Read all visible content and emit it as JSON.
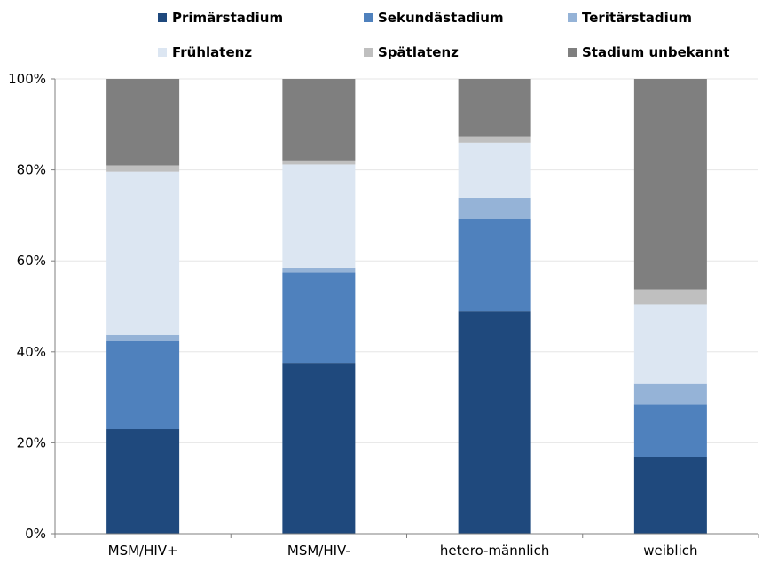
{
  "chart_data": {
    "type": "bar",
    "stacked": true,
    "normalized": true,
    "categories": [
      "MSM/HIV+",
      "MSM/HIV-",
      "hetero-männlich",
      "weiblich"
    ],
    "series": [
      {
        "name": "Primärstadium",
        "color": "#1f497d",
        "values": [
          23.0,
          37.6,
          48.9,
          16.8
        ]
      },
      {
        "name": "Sekundästadium",
        "color": "#4f81bd",
        "values": [
          19.3,
          19.8,
          20.3,
          11.6
        ]
      },
      {
        "name": "Teritärstadium",
        "color": "#95b3d7",
        "values": [
          1.4,
          1.1,
          4.7,
          4.6
        ]
      },
      {
        "name": "Frühlatenz",
        "color": "#dce6f2",
        "values": [
          35.9,
          22.7,
          12.1,
          17.4
        ]
      },
      {
        "name": "Spätlatenz",
        "color": "#bfbfbf",
        "values": [
          1.4,
          0.7,
          1.4,
          3.3
        ]
      },
      {
        "name": "Stadium unbekannt",
        "color": "#7f7f7f",
        "values": [
          19.0,
          18.1,
          12.6,
          46.3
        ]
      }
    ],
    "y_ticks": [
      {
        "value": 0,
        "label": "0%"
      },
      {
        "value": 20,
        "label": "20%"
      },
      {
        "value": 40,
        "label": "40%"
      },
      {
        "value": 60,
        "label": "60%"
      },
      {
        "value": 80,
        "label": "80%"
      },
      {
        "value": 100,
        "label": "100%"
      }
    ],
    "ylim": [
      0,
      100
    ],
    "grid": true,
    "legend_position": "top"
  }
}
